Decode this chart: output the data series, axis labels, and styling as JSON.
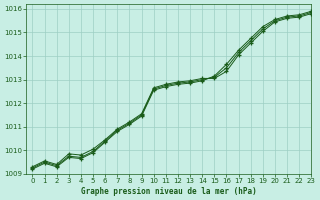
{
  "title": "Graphe pression niveau de la mer (hPa)",
  "background_color": "#c8eee4",
  "grid_color": "#9dcfc4",
  "line_color": "#1a5c1a",
  "xlim": [
    -0.5,
    23
  ],
  "ylim": [
    1009,
    1016.2
  ],
  "yticks": [
    1009,
    1010,
    1011,
    1012,
    1013,
    1014,
    1015,
    1016
  ],
  "xticks": [
    0,
    1,
    2,
    3,
    4,
    5,
    6,
    7,
    8,
    9,
    10,
    11,
    12,
    13,
    14,
    15,
    16,
    17,
    18,
    19,
    20,
    21,
    22,
    23
  ],
  "series": [
    [
      1009.3,
      1009.55,
      1009.4,
      1009.85,
      1009.8,
      1010.05,
      1010.45,
      1010.9,
      1011.2,
      1011.55,
      1012.65,
      1012.8,
      1012.9,
      1012.95,
      1013.05,
      1013.05,
      1013.35,
      1014.05,
      1014.55,
      1015.05,
      1015.45,
      1015.6,
      1015.65,
      1015.8
    ],
    [
      1009.25,
      1009.5,
      1009.35,
      1009.75,
      1009.7,
      1009.95,
      1010.4,
      1010.85,
      1011.15,
      1011.5,
      1012.6,
      1012.75,
      1012.85,
      1012.9,
      1013.0,
      1013.1,
      1013.5,
      1014.15,
      1014.65,
      1015.15,
      1015.5,
      1015.65,
      1015.7,
      1015.85
    ],
    [
      1009.2,
      1009.45,
      1009.3,
      1009.7,
      1009.65,
      1009.9,
      1010.35,
      1010.8,
      1011.1,
      1011.45,
      1012.55,
      1012.7,
      1012.8,
      1012.85,
      1012.95,
      1013.15,
      1013.65,
      1014.25,
      1014.75,
      1015.25,
      1015.55,
      1015.7,
      1015.75,
      1015.9
    ]
  ]
}
